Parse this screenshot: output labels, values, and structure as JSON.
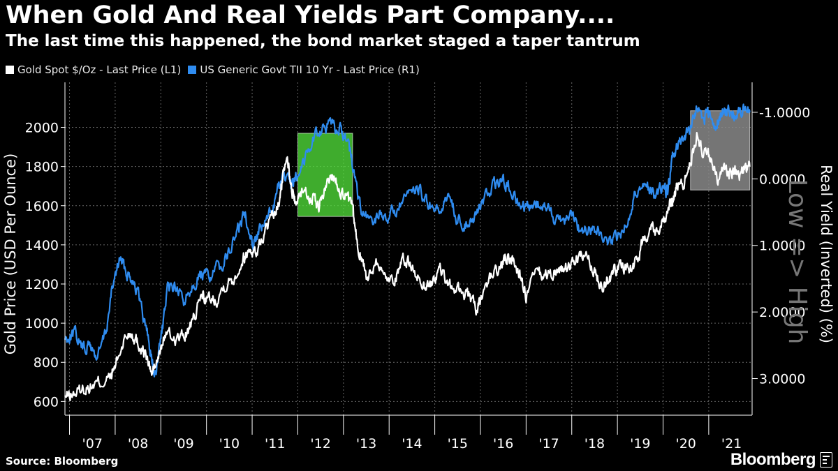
{
  "header": {
    "title": "When Gold And Real Yields Part Company....",
    "subtitle": "The last time this happened, the bond market staged a taper tantrum"
  },
  "legend": {
    "gold_label": "Gold Spot   $/Oz - Last Price (L1)",
    "yield_label": "US Generic Govt TII 10 Yr - Last Price (R1)"
  },
  "footer": {
    "source": "Source: Bloomberg",
    "brand": "Bloomberg"
  },
  "colors": {
    "gold": "#ffffff",
    "yield": "#2f8cf0",
    "grid": "#666666",
    "highlight_green": "#54e63c",
    "highlight_gray": "#8a8a8a"
  },
  "chart_data": {
    "type": "line",
    "title": "When Gold And Real Yields Part Company....",
    "ylabel_left": "Gold Price (USD Per Ounce)",
    "ylabel_right": "Real Yield (Inverted) (%)",
    "right_axis_note": "Low => High",
    "x_tick_labels": [
      "'07",
      "'08",
      "'09",
      "'10",
      "'11",
      "'12",
      "'13",
      "'14",
      "'15",
      "'16",
      "'17",
      "'18",
      "'19",
      "'20",
      "'21"
    ],
    "xlim": [
      2006.9,
      2021.95
    ],
    "ylim_left": [
      530,
      2230
    ],
    "left_ticks": [
      600,
      800,
      1000,
      1200,
      1400,
      1600,
      1800,
      2000
    ],
    "left_tick_labels": [
      "600",
      "800",
      "1000",
      "1200",
      "1400",
      "1600",
      "1800",
      "2000"
    ],
    "ylim_right_inverted": [
      3.55,
      -1.45
    ],
    "right_ticks": [
      -1,
      0,
      1,
      2,
      3
    ],
    "right_tick_labels": [
      "-1.0000",
      "0.0000",
      "1.0000",
      "2.0000",
      "3.0000"
    ],
    "highlights": [
      {
        "name": "taper-tantrum-2012-2013",
        "x_range": [
          2012.0,
          2013.2
        ],
        "left_range": [
          1545,
          1970
        ],
        "color": "green"
      },
      {
        "name": "divergence-2020-2021",
        "x_range": [
          2020.6,
          2021.9
        ],
        "left_range": [
          1680,
          2085
        ],
        "color": "gray"
      }
    ],
    "series": [
      {
        "name": "Gold Spot $/Oz - Last Price (L1)",
        "axis": "left",
        "color": "#ffffff",
        "x": [
          2006.9,
          2007.1,
          2007.3,
          2007.5,
          2007.7,
          2007.9,
          2008.0,
          2008.2,
          2008.35,
          2008.5,
          2008.65,
          2008.8,
          2008.95,
          2009.1,
          2009.3,
          2009.5,
          2009.7,
          2009.9,
          2010.0,
          2010.2,
          2010.4,
          2010.6,
          2010.8,
          2010.95,
          2011.1,
          2011.3,
          2011.45,
          2011.6,
          2011.68,
          2011.75,
          2011.85,
          2011.95,
          2012.1,
          2012.3,
          2012.45,
          2012.6,
          2012.75,
          2012.9,
          2013.05,
          2013.2,
          2013.3,
          2013.45,
          2013.55,
          2013.7,
          2013.9,
          2014.1,
          2014.25,
          2014.4,
          2014.6,
          2014.8,
          2014.95,
          2015.1,
          2015.3,
          2015.5,
          2015.7,
          2015.9,
          2016.0,
          2016.2,
          2016.4,
          2016.55,
          2016.7,
          2016.85,
          2017.0,
          2017.2,
          2017.4,
          2017.6,
          2017.75,
          2017.9,
          2018.1,
          2018.3,
          2018.5,
          2018.65,
          2018.8,
          2018.95,
          2019.1,
          2019.3,
          2019.45,
          2019.6,
          2019.75,
          2019.9,
          2020.1,
          2020.2,
          2020.3,
          2020.45,
          2020.6,
          2020.75,
          2020.9,
          2021.05,
          2021.2,
          2021.35,
          2021.5,
          2021.65,
          2021.8,
          2021.9
        ],
        "values": [
          620,
          640,
          665,
          680,
          700,
          720,
          780,
          920,
          960,
          900,
          850,
          740,
          820,
          950,
          920,
          930,
          1000,
          1150,
          1120,
          1120,
          1200,
          1230,
          1330,
          1380,
          1360,
          1480,
          1530,
          1620,
          1760,
          1880,
          1700,
          1620,
          1680,
          1640,
          1590,
          1680,
          1760,
          1700,
          1650,
          1580,
          1400,
          1300,
          1220,
          1330,
          1240,
          1220,
          1300,
          1320,
          1240,
          1190,
          1200,
          1280,
          1190,
          1170,
          1150,
          1070,
          1090,
          1240,
          1270,
          1330,
          1330,
          1260,
          1130,
          1250,
          1240,
          1260,
          1280,
          1270,
          1330,
          1340,
          1260,
          1200,
          1220,
          1280,
          1290,
          1280,
          1330,
          1450,
          1500,
          1480,
          1560,
          1620,
          1700,
          1720,
          1820,
          1960,
          1860,
          1840,
          1730,
          1780,
          1780,
          1760,
          1790,
          1800
        ]
      },
      {
        "name": "US Generic Govt TII 10 Yr - Last Price (R1)",
        "axis": "right",
        "color": "#2f8cf0",
        "x": [
          2006.9,
          2007.1,
          2007.3,
          2007.45,
          2007.6,
          2007.8,
          2007.95,
          2008.1,
          2008.25,
          2008.4,
          2008.55,
          2008.7,
          2008.8,
          2008.88,
          2009.0,
          2009.15,
          2009.3,
          2009.5,
          2009.7,
          2009.9,
          2010.1,
          2010.3,
          2010.5,
          2010.7,
          2010.85,
          2011.0,
          2011.15,
          2011.35,
          2011.55,
          2011.7,
          2011.85,
          2012.0,
          2012.2,
          2012.4,
          2012.6,
          2012.8,
          2012.95,
          2013.1,
          2013.25,
          2013.4,
          2013.6,
          2013.8,
          2014.0,
          2014.2,
          2014.4,
          2014.6,
          2014.75,
          2014.9,
          2015.1,
          2015.3,
          2015.5,
          2015.7,
          2015.9,
          2016.1,
          2016.3,
          2016.5,
          2016.65,
          2016.85,
          2017.0,
          2017.2,
          2017.4,
          2017.6,
          2017.8,
          2018.0,
          2018.2,
          2018.4,
          2018.6,
          2018.8,
          2019.0,
          2019.2,
          2019.4,
          2019.6,
          2019.8,
          2020.0,
          2020.1,
          2020.2,
          2020.3,
          2020.45,
          2020.6,
          2020.75,
          2020.9,
          2021.0,
          2021.15,
          2021.3,
          2021.45,
          2021.6,
          2021.75,
          2021.9
        ],
        "values": [
          2.4,
          2.3,
          2.55,
          2.5,
          2.7,
          2.3,
          1.6,
          1.2,
          1.4,
          1.5,
          1.85,
          2.3,
          2.7,
          3.0,
          2.4,
          1.7,
          1.6,
          1.85,
          1.55,
          1.45,
          1.45,
          1.3,
          1.1,
          0.75,
          0.5,
          0.95,
          0.8,
          0.6,
          0.2,
          -0.05,
          0.15,
          -0.1,
          -0.4,
          -0.7,
          -0.75,
          -0.8,
          -0.7,
          -0.6,
          0.0,
          0.55,
          0.65,
          0.55,
          0.55,
          0.45,
          0.3,
          0.1,
          0.3,
          0.45,
          0.55,
          0.2,
          0.65,
          0.65,
          0.55,
          0.3,
          0.1,
          0.0,
          0.15,
          0.4,
          0.5,
          0.35,
          0.4,
          0.55,
          0.6,
          0.5,
          0.8,
          0.75,
          0.8,
          1.05,
          0.85,
          0.65,
          0.2,
          0.05,
          0.25,
          0.15,
          0.2,
          -0.3,
          -0.5,
          -0.55,
          -0.8,
          -1.05,
          -0.9,
          -0.95,
          -0.75,
          -1.05,
          -1.0,
          -0.95,
          -1.1,
          -1.0
        ]
      }
    ]
  }
}
